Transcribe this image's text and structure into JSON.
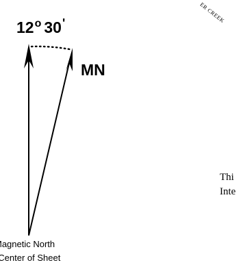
{
  "diagram": {
    "angle": {
      "degrees": "12",
      "degree_symbol": "o",
      "minutes": "30",
      "minute_symbol": "'"
    },
    "mn_label": "MN",
    "curved_label": "ER CREEK",
    "right_text": {
      "line1": "Thi",
      "line2": "Inte"
    },
    "bottom_text": {
      "line1": "Magnetic North",
      "line2": "n at Center of Sheet"
    }
  }
}
